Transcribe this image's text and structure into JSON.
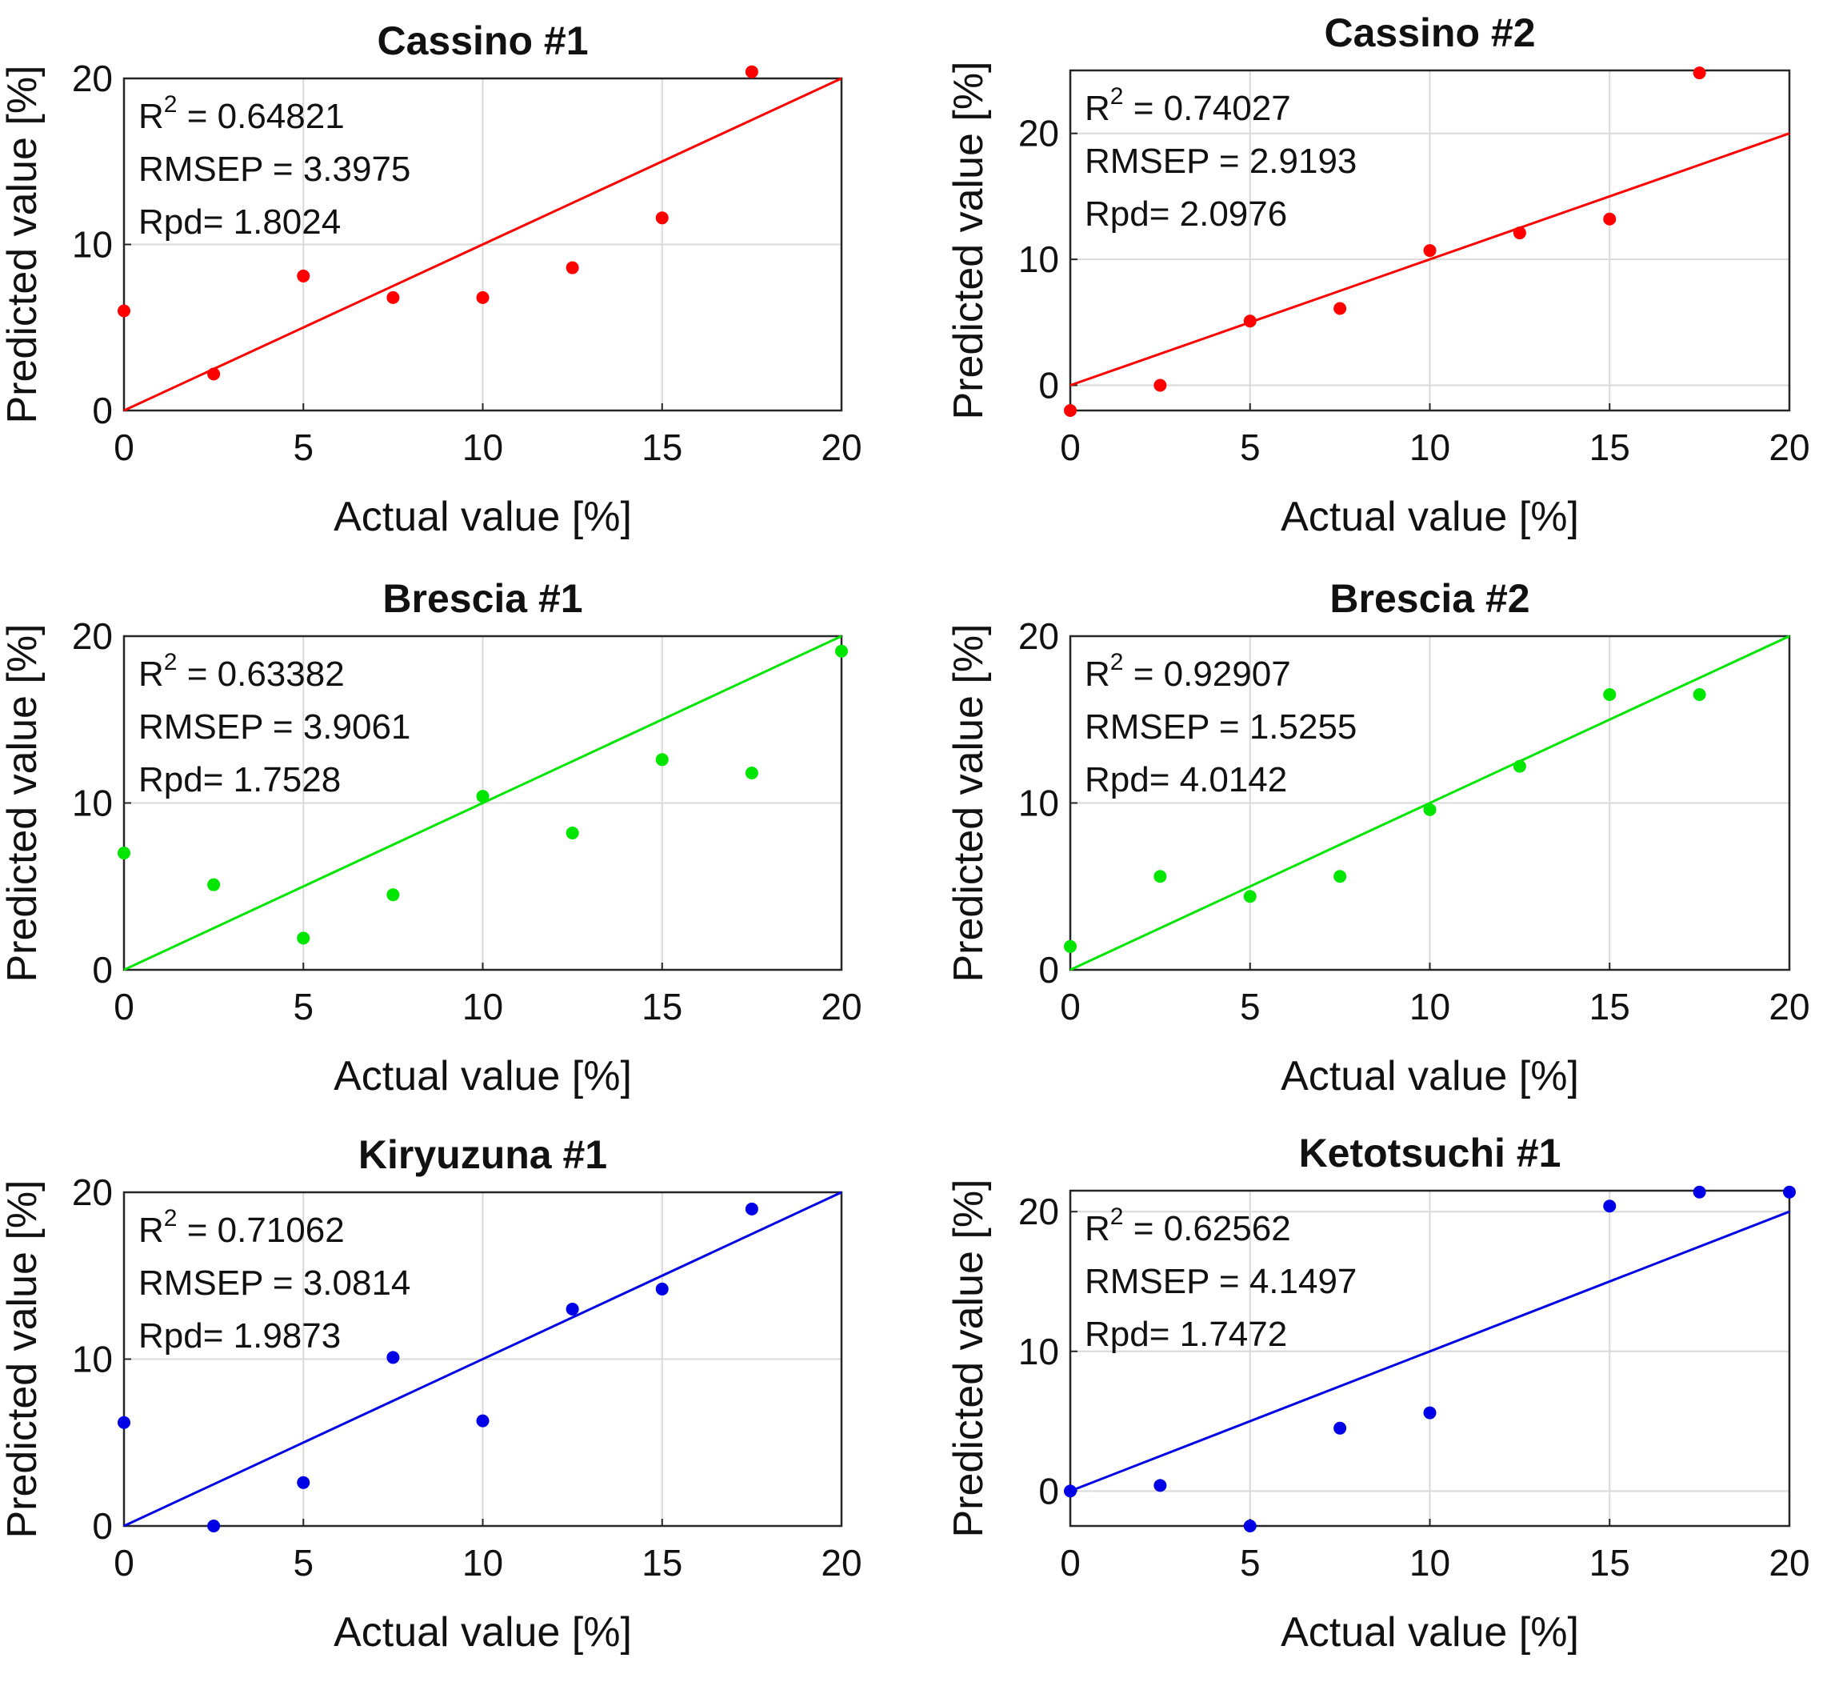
{
  "figure": {
    "charts": [
      {
        "title": "Cassino #1",
        "color": "#ff0000",
        "stats": {
          "r2": "0.64821",
          "rmsep": "RMSEP = 3.3975",
          "rpd": "Rpd= 1.8024"
        },
        "x_ticks": [
          "0",
          "5",
          "10",
          "15",
          "20"
        ],
        "y_ticks": [
          "0",
          "10",
          "20"
        ]
      },
      {
        "title": "Cassino #2",
        "color": "#ff0000",
        "stats": {
          "r2": "0.74027",
          "rmsep": "RMSEP = 2.9193",
          "rpd": "Rpd= 2.0976"
        },
        "x_ticks": [
          "0",
          "5",
          "10",
          "15",
          "20"
        ],
        "y_ticks": [
          "0",
          "10",
          "20"
        ]
      },
      {
        "title": "Brescia #1",
        "color": "#00e600",
        "stats": {
          "r2": "0.63382",
          "rmsep": "RMSEP = 3.9061",
          "rpd": "Rpd= 1.7528"
        },
        "x_ticks": [
          "0",
          "5",
          "10",
          "15",
          "20"
        ],
        "y_ticks": [
          "0",
          "10",
          "20"
        ]
      },
      {
        "title": "Brescia #2",
        "color": "#00e600",
        "stats": {
          "r2": "0.92907",
          "rmsep": "RMSEP = 1.5255",
          "rpd": "Rpd= 4.0142"
        },
        "x_ticks": [
          "0",
          "5",
          "10",
          "15",
          "20"
        ],
        "y_ticks": [
          "0",
          "10",
          "20"
        ]
      },
      {
        "title": "Kiryuzuna #1",
        "color": "#0000e6",
        "stats": {
          "r2": "0.71062",
          "rmsep": "RMSEP = 3.0814",
          "rpd": "Rpd= 1.9873"
        },
        "x_ticks": [
          "0",
          "5",
          "10",
          "15",
          "20"
        ],
        "y_ticks": [
          "0",
          "10",
          "20"
        ]
      },
      {
        "title": "Ketotsuchi #1",
        "color": "#0000e6",
        "stats": {
          "r2": "0.62562",
          "rmsep": "RMSEP = 4.1497",
          "rpd": "Rpd= 1.7472"
        },
        "x_ticks": [
          "0",
          "5",
          "10",
          "15",
          "20"
        ],
        "y_ticks": [
          "0",
          "10",
          "20"
        ]
      }
    ]
  },
  "chart_data": [
    {
      "type": "scatter",
      "title": "Cassino #1",
      "xlabel": "Actual value [%]",
      "ylabel": "Predicted value [%]",
      "xlim": [
        0,
        20
      ],
      "ylim": [
        0,
        20
      ],
      "grid": true,
      "reference_line": {
        "x": [
          0,
          20
        ],
        "y": [
          0,
          20
        ]
      },
      "annotation": {
        "r2_label": "R",
        "r2_sup": "2",
        "r2": "0.64821",
        "rmsep": "RMSEP = 3.3975",
        "rpd": "Rpd= 1.8024"
      },
      "points": {
        "x": [
          0,
          2.5,
          5,
          7.5,
          10,
          12.5,
          15,
          17.5
        ],
        "y": [
          6.0,
          2.2,
          8.1,
          6.8,
          6.8,
          8.6,
          11.6,
          20.4
        ]
      }
    },
    {
      "type": "scatter",
      "title": "Cassino #2",
      "xlabel": "Actual value [%]",
      "ylabel": "Predicted value [%]",
      "xlim": [
        0,
        20
      ],
      "ylim": [
        -2,
        25
      ],
      "grid": true,
      "reference_line": {
        "x": [
          0,
          20
        ],
        "y": [
          0,
          20
        ]
      },
      "annotation": {
        "r2_label": "R",
        "r2_sup": "2",
        "r2": "0.74027",
        "rmsep": "RMSEP = 2.9193",
        "rpd": "Rpd= 2.0976"
      },
      "points": {
        "x": [
          0,
          2.5,
          5,
          7.5,
          10,
          12.5,
          15,
          17.5
        ],
        "y": [
          -2.0,
          0.0,
          5.1,
          6.1,
          10.7,
          12.1,
          13.2,
          24.8
        ]
      }
    },
    {
      "type": "scatter",
      "title": "Brescia #1",
      "xlabel": "Actual value [%]",
      "ylabel": "Predicted value [%]",
      "xlim": [
        0,
        20
      ],
      "ylim": [
        0,
        20
      ],
      "grid": true,
      "reference_line": {
        "x": [
          0,
          20
        ],
        "y": [
          0,
          20
        ]
      },
      "annotation": {
        "r2_label": "R",
        "r2_sup": "2",
        "r2": "0.63382",
        "rmsep": "RMSEP = 3.9061",
        "rpd": "Rpd= 1.7528"
      },
      "points": {
        "x": [
          0,
          2.5,
          5,
          7.5,
          10,
          12.5,
          15,
          17.5,
          20
        ],
        "y": [
          7.0,
          5.1,
          1.9,
          4.5,
          10.4,
          8.2,
          12.6,
          11.8,
          19.1
        ]
      }
    },
    {
      "type": "scatter",
      "title": "Brescia #2",
      "xlabel": "Actual value [%]",
      "ylabel": "Predicted value [%]",
      "xlim": [
        0,
        20
      ],
      "ylim": [
        0,
        20
      ],
      "grid": true,
      "reference_line": {
        "x": [
          0,
          20
        ],
        "y": [
          0,
          20
        ]
      },
      "annotation": {
        "r2_label": "R",
        "r2_sup": "2",
        "r2": "0.92907",
        "rmsep": "RMSEP = 1.5255",
        "rpd": "Rpd= 4.0142"
      },
      "points": {
        "x": [
          0,
          2.5,
          5,
          7.5,
          10,
          12.5,
          15,
          17.5
        ],
        "y": [
          1.4,
          5.6,
          4.4,
          5.6,
          9.6,
          12.2,
          16.5,
          16.5
        ]
      }
    },
    {
      "type": "scatter",
      "title": "Kiryuzuna #1",
      "xlabel": "Actual value [%]",
      "ylabel": "Predicted value [%]",
      "xlim": [
        0,
        20
      ],
      "ylim": [
        0,
        20
      ],
      "grid": true,
      "reference_line": {
        "x": [
          0,
          20
        ],
        "y": [
          0,
          20
        ]
      },
      "annotation": {
        "r2_label": "R",
        "r2_sup": "2",
        "r2": "0.71062",
        "rmsep": "RMSEP = 3.0814",
        "rpd": "Rpd= 1.9873"
      },
      "points": {
        "x": [
          0,
          2.5,
          5,
          7.5,
          10,
          12.5,
          15,
          17.5
        ],
        "y": [
          6.2,
          0.0,
          2.6,
          10.1,
          6.3,
          13.0,
          14.2,
          19.0
        ]
      }
    },
    {
      "type": "scatter",
      "title": "Ketotsuchi #1",
      "xlabel": "Actual value [%]",
      "ylabel": "Predicted value [%]",
      "xlim": [
        0,
        20
      ],
      "ylim": [
        -2.5,
        21.5
      ],
      "grid": true,
      "reference_line": {
        "x": [
          0,
          20
        ],
        "y": [
          0,
          20
        ]
      },
      "annotation": {
        "r2_label": "R",
        "r2_sup": "2",
        "r2": "0.62562",
        "rmsep": "RMSEP = 4.1497",
        "rpd": "Rpd= 1.7472"
      },
      "points": {
        "x": [
          0,
          2.5,
          5,
          7.5,
          10,
          15,
          17.5,
          20
        ],
        "y": [
          0.0,
          0.4,
          -2.5,
          4.5,
          5.6,
          20.4,
          21.4,
          21.4
        ]
      }
    }
  ]
}
